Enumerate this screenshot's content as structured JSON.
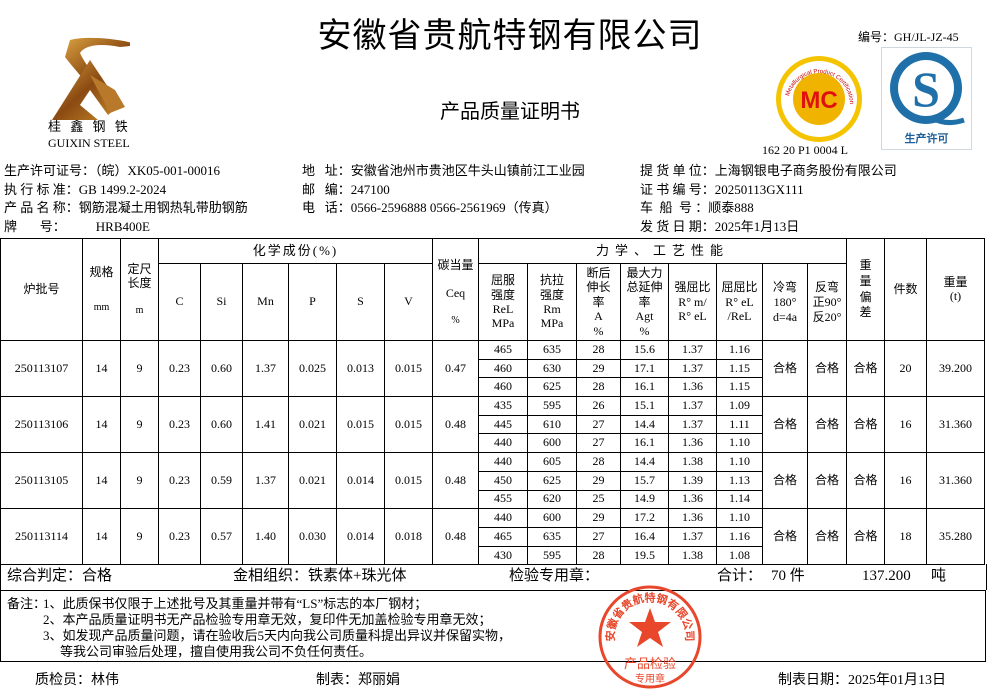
{
  "header": {
    "title": "安徽省贵航特钢有限公司",
    "subtitle": "产品质量证明书",
    "doc_number": "编号：GH/JL-JZ-45",
    "logo_cn": "桂 鑫 钢 铁",
    "logo_en": "GUIXIN  STEEL",
    "mc_logo": {
      "text": "MC",
      "ring_top": "冶金产品认证",
      "ring_bottom": "Metallurgical Product Certification",
      "code": "162 20 P1 0004 L"
    },
    "qs_logo": {
      "letter": "S",
      "caption": "生产许可"
    }
  },
  "info": {
    "col1": [
      {
        "label": "生产许可证号：",
        "value": "（皖）XK05-001-00016"
      },
      {
        "label": "执 行 标 准：",
        "value": "GB 1499.2-2024"
      },
      {
        "label": "产 品 名 称：",
        "value": "钢筋混凝土用钢热轧带肋钢筋"
      },
      {
        "label": "牌       号：",
        "value": "HRB400E"
      }
    ],
    "col2": [
      {
        "label": "地   址：",
        "value": "安徽省池州市贵池区牛头山镇前江工业园"
      },
      {
        "label": "邮   编：",
        "value": "247100"
      },
      {
        "label": "电   话：",
        "value": "0566-2596888  0566-2561969（传真）"
      }
    ],
    "col3": [
      {
        "label": "提 货 单 位：",
        "value": "上海钢银电子商务股份有限公司"
      },
      {
        "label": "证 书 编 号：",
        "value": "20250113GX111"
      },
      {
        "label": "车  船  号 ：",
        "value": "顺泰888"
      },
      {
        "label": "发 货 日 期：",
        "value": "2025年1月13日"
      }
    ]
  },
  "table": {
    "headers": {
      "lot": "炉批号",
      "spec": "规格",
      "spec_unit": "mm",
      "length": "定尺长度",
      "length_unit": "m",
      "chem_group": "化学成份(%)",
      "chem": [
        "C",
        "Si",
        "Mn",
        "P",
        "S",
        "V"
      ],
      "ceq": "碳当量",
      "ceq_sub": "Ceq",
      "ceq_unit": "%",
      "mech_group": "力学、工艺性能",
      "mech": [
        "屈服强度ReLMPa",
        "抗拉强度RmMPa",
        "断后伸长率A%",
        "最大力总延伸率Agt%",
        "强屈比R° m/R° eL",
        "屈屈比R° eL/ReL",
        "冷弯180°d=4a",
        "反弯正90°反20°"
      ],
      "mech_lines": [
        [
          "屈服",
          "强度",
          "ReL",
          "MPa"
        ],
        [
          "抗拉",
          "强度",
          "Rm",
          "MPa"
        ],
        [
          "断后",
          "伸长",
          "率",
          "A",
          "%"
        ],
        [
          "最大力",
          "总延伸",
          "率",
          "Agt",
          "%"
        ],
        [
          "强屈比",
          "R° m/",
          "R° eL"
        ],
        [
          "屈屈比",
          "R° eL",
          "/ReL"
        ],
        [
          "冷弯",
          "180°",
          "d=4a"
        ],
        [
          "反弯",
          "正90°",
          "反20°"
        ]
      ],
      "weight_dev": "重量偏差",
      "pieces": "件数",
      "weight": "重量",
      "weight_unit": "(t)"
    },
    "rows": [
      {
        "lot": "250113107",
        "spec": "14",
        "length": "9",
        "chem": [
          "0.23",
          "0.60",
          "1.37",
          "0.025",
          "0.013",
          "0.015"
        ],
        "ceq": "0.47",
        "mech": [
          [
            "465",
            "635",
            "28",
            "15.6",
            "1.37",
            "1.16"
          ],
          [
            "460",
            "630",
            "29",
            "17.1",
            "1.37",
            "1.15"
          ],
          [
            "460",
            "625",
            "28",
            "16.1",
            "1.36",
            "1.15"
          ]
        ],
        "cold_bend": "合格",
        "reverse_bend": "合格",
        "weight_dev": "合格",
        "pieces": "20",
        "weight": "39.200"
      },
      {
        "lot": "250113106",
        "spec": "14",
        "length": "9",
        "chem": [
          "0.23",
          "0.60",
          "1.41",
          "0.021",
          "0.015",
          "0.015"
        ],
        "ceq": "0.48",
        "mech": [
          [
            "435",
            "595",
            "26",
            "15.1",
            "1.37",
            "1.09"
          ],
          [
            "445",
            "610",
            "27",
            "14.4",
            "1.37",
            "1.11"
          ],
          [
            "440",
            "600",
            "27",
            "16.1",
            "1.36",
            "1.10"
          ]
        ],
        "cold_bend": "合格",
        "reverse_bend": "合格",
        "weight_dev": "合格",
        "pieces": "16",
        "weight": "31.360"
      },
      {
        "lot": "250113105",
        "spec": "14",
        "length": "9",
        "chem": [
          "0.23",
          "0.59",
          "1.37",
          "0.021",
          "0.014",
          "0.015"
        ],
        "ceq": "0.48",
        "mech": [
          [
            "440",
            "605",
            "28",
            "14.4",
            "1.38",
            "1.10"
          ],
          [
            "450",
            "625",
            "29",
            "15.7",
            "1.39",
            "1.13"
          ],
          [
            "455",
            "620",
            "25",
            "14.9",
            "1.36",
            "1.14"
          ]
        ],
        "cold_bend": "合格",
        "reverse_bend": "合格",
        "weight_dev": "合格",
        "pieces": "16",
        "weight": "31.360"
      },
      {
        "lot": "250113114",
        "spec": "14",
        "length": "9",
        "chem": [
          "0.23",
          "0.57",
          "1.40",
          "0.030",
          "0.014",
          "0.018"
        ],
        "ceq": "0.48",
        "mech": [
          [
            "440",
            "600",
            "29",
            "17.2",
            "1.36",
            "1.10"
          ],
          [
            "465",
            "635",
            "27",
            "16.4",
            "1.37",
            "1.16"
          ],
          [
            "430",
            "595",
            "28",
            "19.5",
            "1.38",
            "1.08"
          ]
        ],
        "cold_bend": "合格",
        "reverse_bend": "合格",
        "weight_dev": "合格",
        "pieces": "18",
        "weight": "35.280"
      }
    ]
  },
  "summary": {
    "judgement": "综合判定：合格",
    "microstructure": "金相组织：铁素体+珠光体",
    "stamp_label": "检验专用章：",
    "total_label": "合计：",
    "total_pieces": "70 件",
    "total_weight": "137.200",
    "weight_unit": "吨"
  },
  "notes": {
    "label": "备注：",
    "lines": [
      "1、此质保书仅限于上述批号及其重量并带有“LS”标志的本厂钢材；",
      "2、本产品质量证明书无产品检验专用章无效，复印件无加盖检验专用章无效；",
      "3、如发现产品质量问题，请在验收后5天内向我公司质量科提出异议并保留实物，",
      "等我公司审验后处理，擅自使用我公司不负任何责任。"
    ]
  },
  "stamp": {
    "ring": "安徽省贵航特钢有限公司",
    "center": "产品检验",
    "bottom": "专用章",
    "color": "#e8472b"
  },
  "footer": {
    "inspector": "质检员：林伟",
    "preparer": "制表：郑丽娟",
    "date": "制表日期：2025年01月13日"
  }
}
